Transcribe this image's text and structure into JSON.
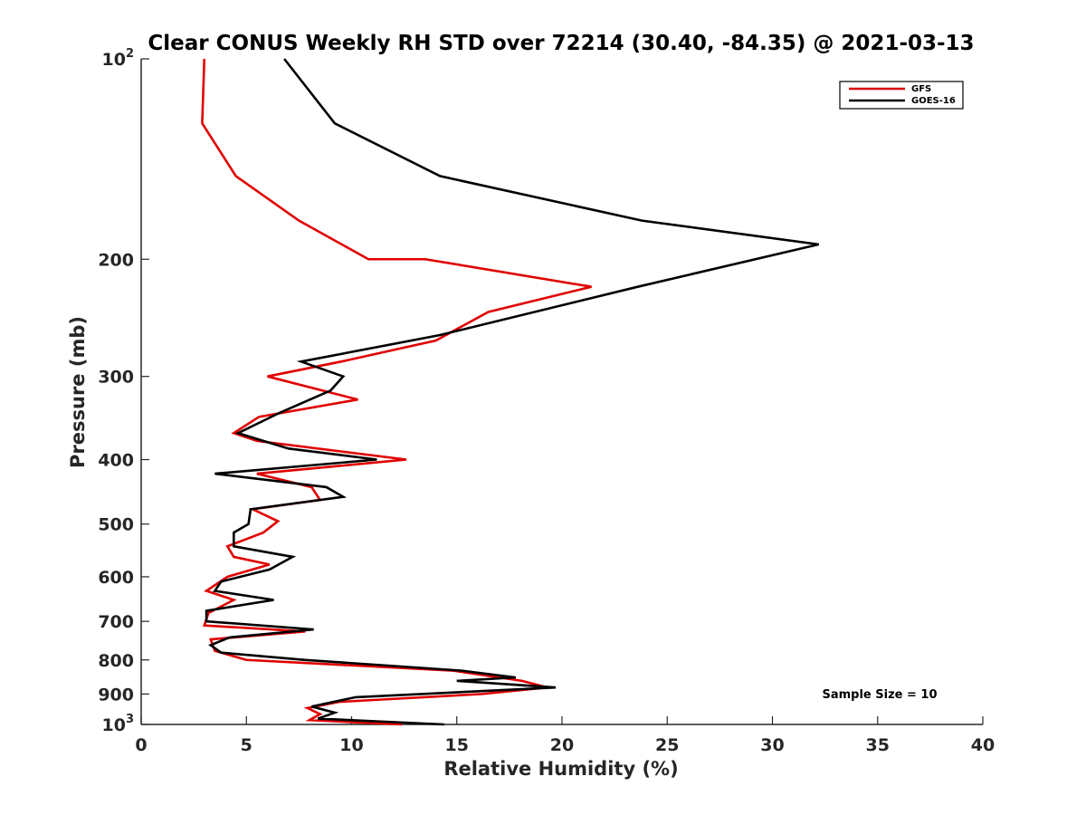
{
  "chart_data": {
    "type": "line",
    "title": "Clear CONUS Weekly RH STD over 72214 (30.40, -84.35) @ 2021-03-13",
    "xlabel": "Relative Humidity (%)",
    "ylabel": "Pressure (mb)",
    "xlim": [
      0,
      40
    ],
    "ylim": [
      100,
      1000
    ],
    "yscale": "log",
    "y_reversed": true,
    "grid": false,
    "legend_position": "top-right",
    "x_ticks": [
      0,
      5,
      10,
      15,
      20,
      25,
      30,
      35,
      40
    ],
    "x_tick_labels": [
      "0",
      "5",
      "10",
      "15",
      "20",
      "25",
      "30",
      "35",
      "40"
    ],
    "y_ticks": [
      200,
      300,
      400,
      500,
      600,
      700,
      800,
      900
    ],
    "y_tick_labels": [
      "200",
      "300",
      "400",
      "500",
      "600",
      "700",
      "800",
      "900"
    ],
    "y_tick_top": {
      "base": "10",
      "exp": "2"
    },
    "y_tick_bottom": {
      "base": "10",
      "exp": "3"
    },
    "annotation": "Sample Size = 10",
    "series": [
      {
        "name": "GFS",
        "color": "#e00000",
        "points": [
          [
            3.0,
            100
          ],
          [
            2.9,
            125
          ],
          [
            4.5,
            150
          ],
          [
            7.5,
            175
          ],
          [
            10.8,
            200
          ],
          [
            13.5,
            200
          ],
          [
            21.4,
            220
          ],
          [
            16.5,
            240
          ],
          [
            14.0,
            265
          ],
          [
            9.5,
            285
          ],
          [
            6.0,
            300
          ],
          [
            10.3,
            325
          ],
          [
            5.6,
            345
          ],
          [
            4.4,
            365
          ],
          [
            5.5,
            375
          ],
          [
            12.6,
            400
          ],
          [
            5.5,
            420
          ],
          [
            8.1,
            440
          ],
          [
            8.5,
            460
          ],
          [
            5.3,
            475
          ],
          [
            6.5,
            495
          ],
          [
            5.8,
            515
          ],
          [
            4.1,
            540
          ],
          [
            4.4,
            560
          ],
          [
            6.1,
            575
          ],
          [
            4.1,
            600
          ],
          [
            3.1,
            630
          ],
          [
            4.4,
            650
          ],
          [
            3.2,
            680
          ],
          [
            3.0,
            710
          ],
          [
            7.8,
            725
          ],
          [
            3.3,
            745
          ],
          [
            3.5,
            775
          ],
          [
            5.0,
            800
          ],
          [
            14.8,
            830
          ],
          [
            18.1,
            860
          ],
          [
            19.3,
            880
          ],
          [
            16.2,
            900
          ],
          [
            9.4,
            925
          ],
          [
            7.9,
            945
          ],
          [
            8.5,
            965
          ],
          [
            8.0,
            985
          ],
          [
            12.4,
            1000
          ]
        ]
      },
      {
        "name": "GOES-16",
        "color": "#000000",
        "points": [
          [
            6.8,
            100
          ],
          [
            9.2,
            125
          ],
          [
            14.2,
            150
          ],
          [
            23.8,
            175
          ],
          [
            32.2,
            190
          ],
          [
            23.6,
            220
          ],
          [
            14.2,
            260
          ],
          [
            7.6,
            285
          ],
          [
            9.6,
            300
          ],
          [
            9.0,
            315
          ],
          [
            6.6,
            340
          ],
          [
            4.6,
            365
          ],
          [
            7.0,
            385
          ],
          [
            11.2,
            400
          ],
          [
            3.5,
            420
          ],
          [
            8.8,
            440
          ],
          [
            9.6,
            455
          ],
          [
            5.2,
            475
          ],
          [
            5.1,
            500
          ],
          [
            4.4,
            515
          ],
          [
            4.4,
            540
          ],
          [
            7.2,
            560
          ],
          [
            6.1,
            585
          ],
          [
            3.8,
            610
          ],
          [
            3.5,
            630
          ],
          [
            6.3,
            650
          ],
          [
            3.1,
            675
          ],
          [
            3.1,
            700
          ],
          [
            8.2,
            720
          ],
          [
            4.2,
            740
          ],
          [
            3.3,
            760
          ],
          [
            3.8,
            780
          ],
          [
            7.8,
            800
          ],
          [
            15.2,
            830
          ],
          [
            17.8,
            850
          ],
          [
            15.0,
            860
          ],
          [
            19.7,
            880
          ],
          [
            10.2,
            910
          ],
          [
            8.1,
            940
          ],
          [
            9.2,
            960
          ],
          [
            8.4,
            980
          ],
          [
            14.4,
            1000
          ]
        ]
      }
    ]
  }
}
